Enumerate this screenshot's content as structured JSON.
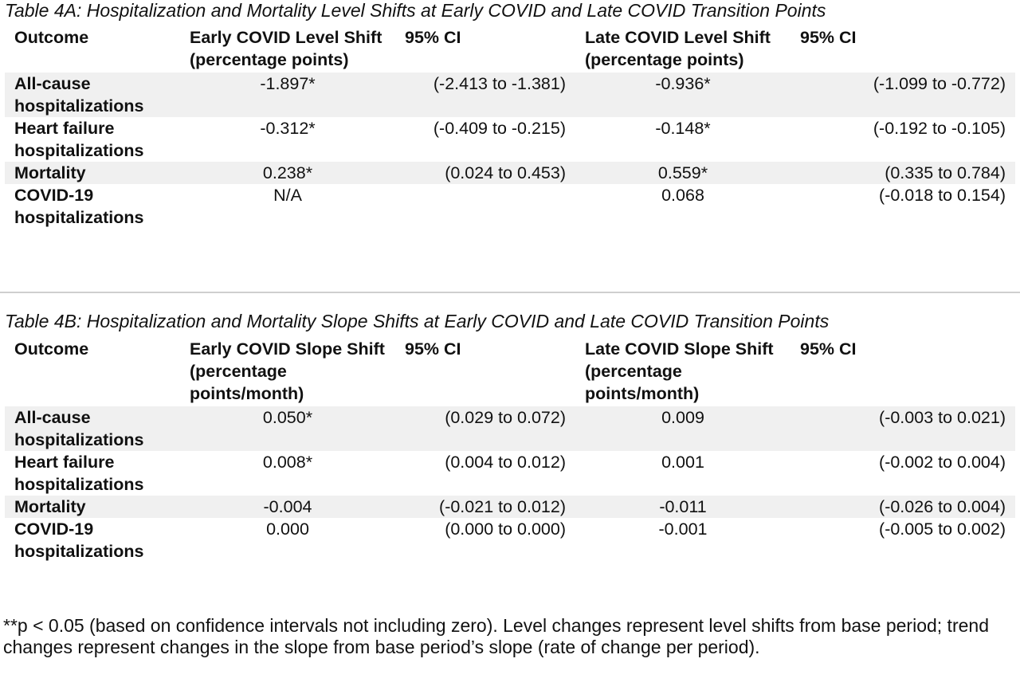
{
  "table_4a": {
    "caption": "Table 4A: Hospitalization and Mortality Level Shifts at Early COVID and Late COVID Transition Points",
    "headers": [
      "Outcome",
      "Early COVID Level Shift (percentage points)",
      "95% CI",
      "Late COVID Level Shift (percentage points)",
      "95% CI"
    ],
    "rows": [
      [
        "All-cause hospitalizations",
        "-1.897*",
        "(-2.413 to -1.381)",
        "-0.936*",
        "(-1.099 to -0.772)"
      ],
      [
        "Heart failure hospitalizations",
        "-0.312*",
        "(-0.409 to -0.215)",
        "-0.148*",
        "(-0.192 to -0.105)"
      ],
      [
        "Mortality",
        "0.238*",
        "(0.024 to 0.453)",
        "0.559*",
        "(0.335 to 0.784)"
      ],
      [
        "COVID-19 hospitalizations",
        "N/A",
        "",
        "0.068",
        "(-0.018 to 0.154)"
      ]
    ]
  },
  "table_4b": {
    "caption": "Table 4B: Hospitalization and Mortality Slope Shifts at Early COVID and Late COVID Transition Points",
    "headers": [
      "Outcome",
      "Early COVID Slope Shift (percentage points/month)",
      "95% CI",
      "Late COVID Slope Shift (percentage points/month)",
      "95% CI"
    ],
    "rows": [
      [
        "All-cause hospitalizations",
        "0.050*",
        "(0.029 to 0.072)",
        "0.009",
        "(-0.003 to 0.021)"
      ],
      [
        "Heart failure hospitalizations",
        "0.008*",
        "(0.004 to 0.012)",
        "0.001",
        "(-0.002 to 0.004)"
      ],
      [
        "Mortality",
        "-0.004",
        "(-0.021 to 0.012)",
        "-0.011",
        "(-0.026 to 0.004)"
      ],
      [
        "COVID-19 hospitalizations",
        "0.000",
        "(0.000 to 0.000)",
        "-0.001",
        "(-0.005 to 0.002)"
      ]
    ]
  },
  "footnote": "**p < 0.05 (based on confidence intervals not including zero). Level changes represent level shifts from base period; trend changes represent changes in the slope from base period’s slope (rate of change per period).",
  "colors": {
    "row_shading": "#f0f0f0",
    "divider": "#cfcfcf",
    "text": "#111111"
  }
}
